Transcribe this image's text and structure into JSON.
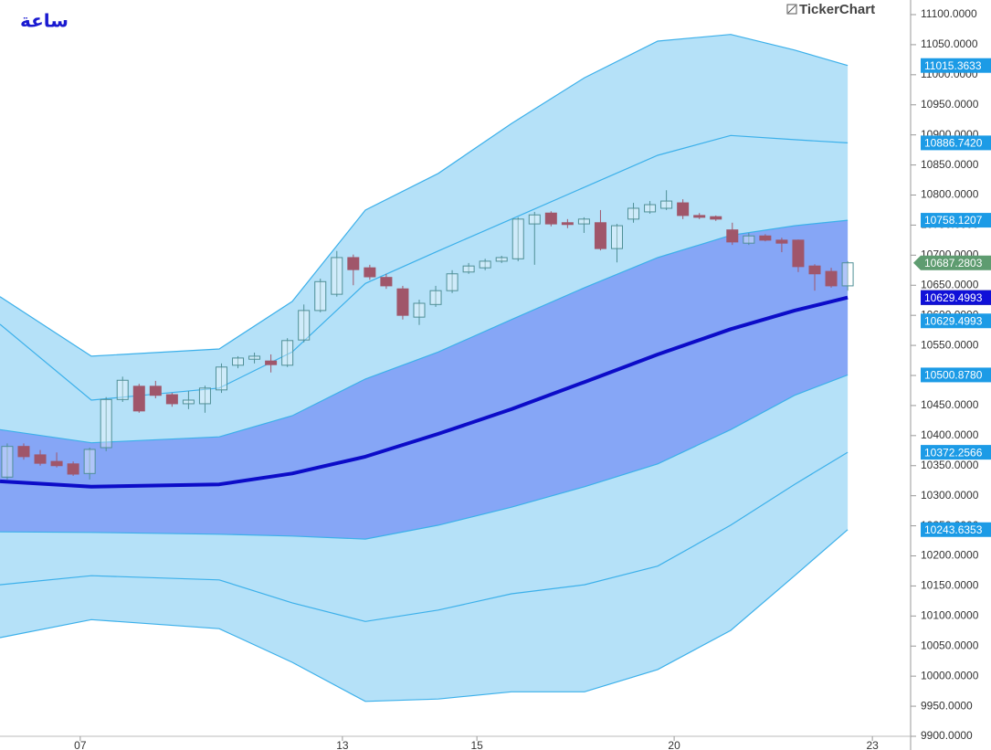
{
  "chart_data": {
    "type": "candlestick",
    "title": "ساعة",
    "watermark": "TickerChart",
    "x": [
      0,
      1,
      2,
      3,
      4,
      5,
      6,
      7,
      8,
      9,
      10,
      11,
      12,
      13,
      14,
      15,
      16,
      17,
      18,
      19,
      20,
      21,
      22,
      23,
      24,
      25,
      26,
      27,
      28,
      29,
      30,
      31,
      32,
      33,
      34,
      35,
      36,
      37,
      38,
      39,
      40,
      41,
      42,
      43,
      44,
      45,
      46,
      47,
      48,
      49,
      50,
      51
    ],
    "open": [
      10331,
      10382,
      10368,
      10357,
      10353,
      10337,
      10380,
      10460,
      10482,
      10482,
      10468,
      10453,
      10453,
      10476,
      10517,
      10527,
      10524,
      10517,
      10559,
      10608,
      10635,
      10696,
      10679,
      10663,
      10644,
      10597,
      10618,
      10641,
      10672,
      10679,
      10690,
      10694,
      10752,
      10770,
      10754,
      10752,
      10754,
      10711,
      10760,
      10772,
      10778,
      10787,
      10766,
      10764,
      10742,
      10720,
      10732,
      10725,
      10725,
      10682,
      10673,
      10649
    ],
    "high": [
      10387,
      10387,
      10376,
      10372,
      10357,
      10380,
      10464,
      10498,
      10486,
      10491,
      10471,
      10474,
      10483,
      10520,
      10532,
      10538,
      10535,
      10562,
      10618,
      10661,
      10707,
      10701,
      10684,
      10669,
      10649,
      10626,
      10649,
      10675,
      10687,
      10694,
      10699,
      10763,
      10772,
      10773,
      10760,
      10763,
      10775,
      10752,
      10787,
      10790,
      10808,
      10793,
      10770,
      10766,
      10754,
      10737,
      10735,
      10729,
      10726,
      10685,
      10679,
      10690
    ],
    "low": [
      10327,
      10360,
      10350,
      10347,
      10333,
      10327,
      10374,
      10456,
      10438,
      10462,
      10448,
      10444,
      10438,
      10471,
      10512,
      10520,
      10505,
      10514,
      10555,
      10605,
      10631,
      10650,
      10659,
      10644,
      10593,
      10584,
      10614,
      10637,
      10669,
      10675,
      10687,
      10690,
      10684,
      10748,
      10745,
      10737,
      10708,
      10688,
      10754,
      10769,
      10775,
      10760,
      10760,
      10757,
      10717,
      10717,
      10723,
      10705,
      10672,
      10641,
      10646,
      10641
    ],
    "close": [
      10382,
      10365,
      10354,
      10350,
      10336,
      10377,
      10460,
      10492,
      10441,
      10467,
      10453,
      10459,
      10479,
      10514,
      10529,
      10532,
      10518,
      10558,
      10608,
      10656,
      10696,
      10676,
      10664,
      10649,
      10600,
      10620,
      10641,
      10669,
      10682,
      10690,
      10696,
      10760,
      10767,
      10752,
      10751,
      10760,
      10711,
      10749,
      10778,
      10784,
      10790,
      10766,
      10763,
      10760,
      10722,
      10732,
      10725,
      10720,
      10681,
      10669,
      10649,
      10687.2803
    ],
    "up_color": "#4f8f96",
    "down_color": "#a0566a",
    "band_x": [
      -0.44,
      5.1,
      12.86,
      17.29,
      21.73,
      26.16,
      30.6,
      35.03,
      39.47,
      43.9,
      47.78,
      51
    ],
    "bands": {
      "upper3": [
        10631,
        10532,
        10544,
        10623,
        10775,
        10836,
        10919,
        10995,
        11056,
        11067,
        11041,
        11015.3633
      ],
      "upper2": [
        10585,
        10459,
        10479,
        10539,
        10653,
        10707,
        10760,
        10813,
        10866,
        10899,
        10892,
        10886.742
      ],
      "upper1": [
        10410,
        10388,
        10398,
        10433,
        10494,
        10539,
        10593,
        10646,
        10696,
        10733,
        10749,
        10758.1207
      ],
      "mid": [
        10324,
        10315,
        10319,
        10337,
        10365,
        10403,
        10444,
        10489,
        10535,
        10577,
        10608,
        10629.4993
      ],
      "lower1": [
        10240,
        10239,
        10236,
        10233,
        10228,
        10251,
        10281,
        10315,
        10353,
        10410,
        10467,
        10500.878
      ],
      "lower2": [
        10152,
        10167,
        10160,
        10122,
        10091,
        10110,
        10137,
        10152,
        10183,
        10251,
        10319,
        10372.2566
      ],
      "lower3": [
        10064,
        10094,
        10079,
        10023,
        9958,
        9962,
        9974,
        9974,
        10011,
        10076,
        10167,
        10243.6353
      ]
    },
    "outer_fill": "#b5e1f8",
    "inner_fill": "#86a6f6",
    "band_line_color": "#3cb0ea",
    "mid_color": "#0c0cc8",
    "xlim": [
      -0.44,
      54.82
    ],
    "xticks": [
      {
        "value": 4.43,
        "label": "07"
      },
      {
        "value": 20.34,
        "label": "13"
      },
      {
        "value": 28.5,
        "label": "15"
      },
      {
        "value": 40.47,
        "label": "20"
      },
      {
        "value": 52.5,
        "label": "23"
      }
    ],
    "ylim": [
      9900,
      11100
    ],
    "yticks": [
      {
        "value": 9900,
        "label": "9900.0000"
      },
      {
        "value": 9950,
        "label": "9950.0000"
      },
      {
        "value": 10000,
        "label": "10000.0000"
      },
      {
        "value": 10050,
        "label": "10050.0000"
      },
      {
        "value": 10100,
        "label": "10100.0000"
      },
      {
        "value": 10150,
        "label": "10150.0000"
      },
      {
        "value": 10200,
        "label": "10200.0000"
      },
      {
        "value": 10250,
        "label": "10250.0000"
      },
      {
        "value": 10300,
        "label": "10300.0000"
      },
      {
        "value": 10350,
        "label": "10350.0000"
      },
      {
        "value": 10400,
        "label": "10400.0000"
      },
      {
        "value": 10450,
        "label": "10450.0000"
      },
      {
        "value": 10500,
        "label": "10500.0000"
      },
      {
        "value": 10550,
        "label": "10550.0000"
      },
      {
        "value": 10600,
        "label": "10600.0000"
      },
      {
        "value": 10650,
        "label": "10650.0000"
      },
      {
        "value": 10700,
        "label": "10700.0000"
      },
      {
        "value": 10750,
        "label": "10750.0000"
      },
      {
        "value": 10800,
        "label": "10800.0000"
      },
      {
        "value": 10850,
        "label": "10850.0000"
      },
      {
        "value": 10900,
        "label": "10900.0000"
      },
      {
        "value": 10950,
        "label": "10950.0000"
      },
      {
        "value": 11000,
        "label": "11000.0000"
      },
      {
        "value": 11050,
        "label": "11050.0000"
      },
      {
        "value": 11100,
        "label": "11100.0000"
      }
    ],
    "markers": [
      {
        "value": 11015.3633,
        "label": "11015.3633",
        "color": "#1c9be6"
      },
      {
        "value": 10886.742,
        "label": "10886.7420",
        "color": "#1c9be6"
      },
      {
        "value": 10758.1207,
        "label": "10758.1207",
        "color": "#1c9be6"
      },
      {
        "value": 10687.2803,
        "label": "10687.2803",
        "color": "#5e9c70",
        "arrow": true
      },
      {
        "value": 10629.4993,
        "label": "10629.4993",
        "color": "#000000"
      },
      {
        "value": 10629.4993,
        "label": "10629.4993",
        "color": "#1c9be6"
      },
      {
        "value": 10629.4993,
        "label": "10629.4993",
        "color": "#1010d8"
      },
      {
        "value": 10500.878,
        "label": "10500.8780",
        "color": "#1c9be6"
      },
      {
        "value": 10372.2566,
        "label": "10372.2566",
        "color": "#1c9be6"
      },
      {
        "value": 10243.6353,
        "label": "10243.6353",
        "color": "#1c9be6"
      }
    ]
  }
}
